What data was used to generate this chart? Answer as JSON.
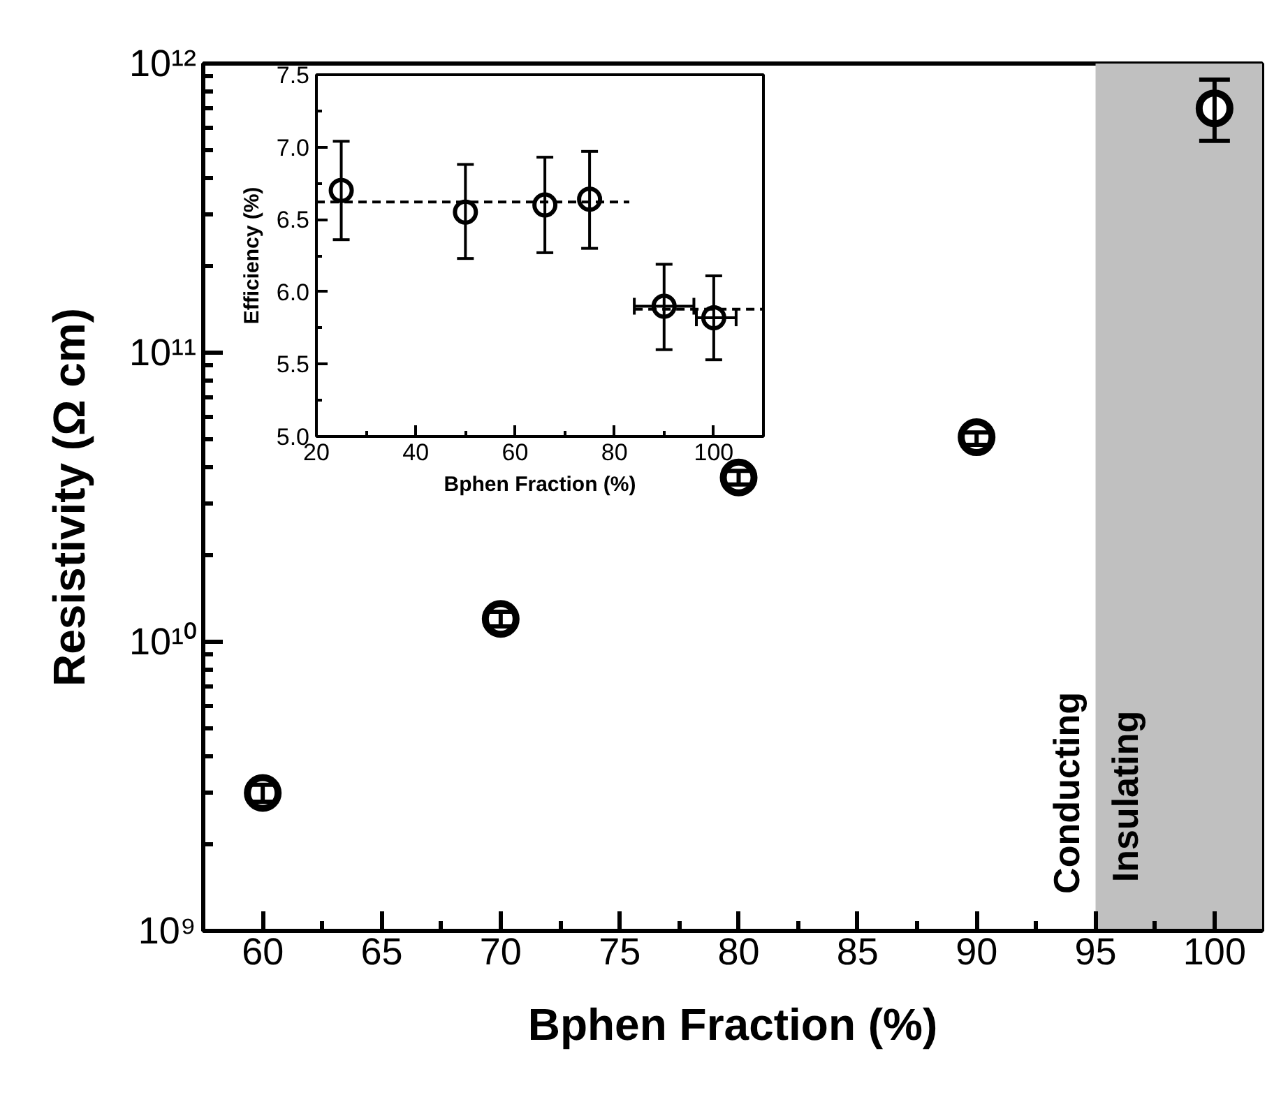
{
  "chart_data": [
    {
      "type": "scatter",
      "xlabel": "Bphen Fraction (%)",
      "ylabel": "Resistivity (Ω cm)",
      "log": "y",
      "marker": "circle",
      "grid": false,
      "x": [
        60,
        70,
        80,
        90,
        100
      ],
      "series": [
        {
          "color": "#000000",
          "values": [
            3000000000.0,
            12000000000.0,
            37000000000.0,
            51000000000.0,
            700000000000.0
          ],
          "errors": [
            [
              2800000000.0,
              3200000000.0
            ],
            [
              11300000000.0,
              12700000000.0
            ],
            [
              35000000000.0,
              39000000000.0
            ],
            [
              48000000000.0,
              53000000000.0
            ],
            [
              540000000000.0,
              880000000000.0
            ]
          ]
        }
      ],
      "xlim": [
        57.5,
        102
      ],
      "xticks": [
        60,
        65,
        70,
        75,
        80,
        85,
        90,
        95,
        100
      ],
      "ylim": [
        1000000000.0,
        1000000000000.0
      ],
      "yticks": [
        {
          "value": 1000000000.0,
          "label": "10⁹"
        },
        {
          "value": 10000000000.0,
          "label": "10¹⁰"
        },
        {
          "value": 100000000000.0,
          "label": "10¹¹"
        },
        {
          "value": 1000000000000.0,
          "label": "10¹²"
        }
      ],
      "bands": [
        {
          "axis": "x",
          "from": 95,
          "to": 102,
          "label": "Insulating",
          "color": "#c0c0c0"
        }
      ],
      "annotations": [
        {
          "text": "Conducting",
          "x": 95,
          "y": 3000000000.0
        }
      ]
    },
    {
      "type": "scatter",
      "xlabel": "Bphen Fraction (%)",
      "ylabel": "Efficiency (%)",
      "marker": "circle",
      "grid": false,
      "series": [
        {
          "color": "#000000",
          "x": [
            25,
            50,
            66,
            75,
            90,
            100
          ],
          "values": [
            6.7,
            6.55,
            6.6,
            6.64,
            5.9,
            5.82
          ],
          "errors": [
            [
              6.36,
              7.04
            ],
            [
              6.23,
              6.88
            ],
            [
              6.27,
              6.93
            ],
            [
              6.3,
              6.97
            ],
            [
              5.6,
              6.19
            ],
            [
              5.53,
              6.11
            ]
          ],
          "xerrors": [
            null,
            null,
            null,
            null,
            [
              84,
              96
            ],
            [
              96.5,
              104.5
            ]
          ]
        },
        {
          "type": "line",
          "marker": "none",
          "color": "#000000",
          "line_style": "dashed",
          "x": [
            20,
            83
          ],
          "values": [
            6.62,
            6.62
          ]
        },
        {
          "type": "line",
          "marker": "none",
          "color": "#000000",
          "line_style": "dashed",
          "x": [
            84,
            110
          ],
          "values": [
            5.88,
            5.88
          ]
        }
      ],
      "xlim": [
        20,
        110
      ],
      "xticks": [
        20,
        40,
        60,
        80,
        100
      ],
      "ylim": [
        5.0,
        7.5
      ],
      "yticks": [
        {
          "value": 5.0,
          "label": "5.0"
        },
        {
          "value": 5.5,
          "label": "5.5"
        },
        {
          "value": 6.0,
          "label": "6.0"
        },
        {
          "value": 6.5,
          "label": "6.5"
        },
        {
          "value": 7.0,
          "label": "7.0"
        },
        {
          "value": 7.5,
          "label": "7.5"
        }
      ]
    }
  ]
}
